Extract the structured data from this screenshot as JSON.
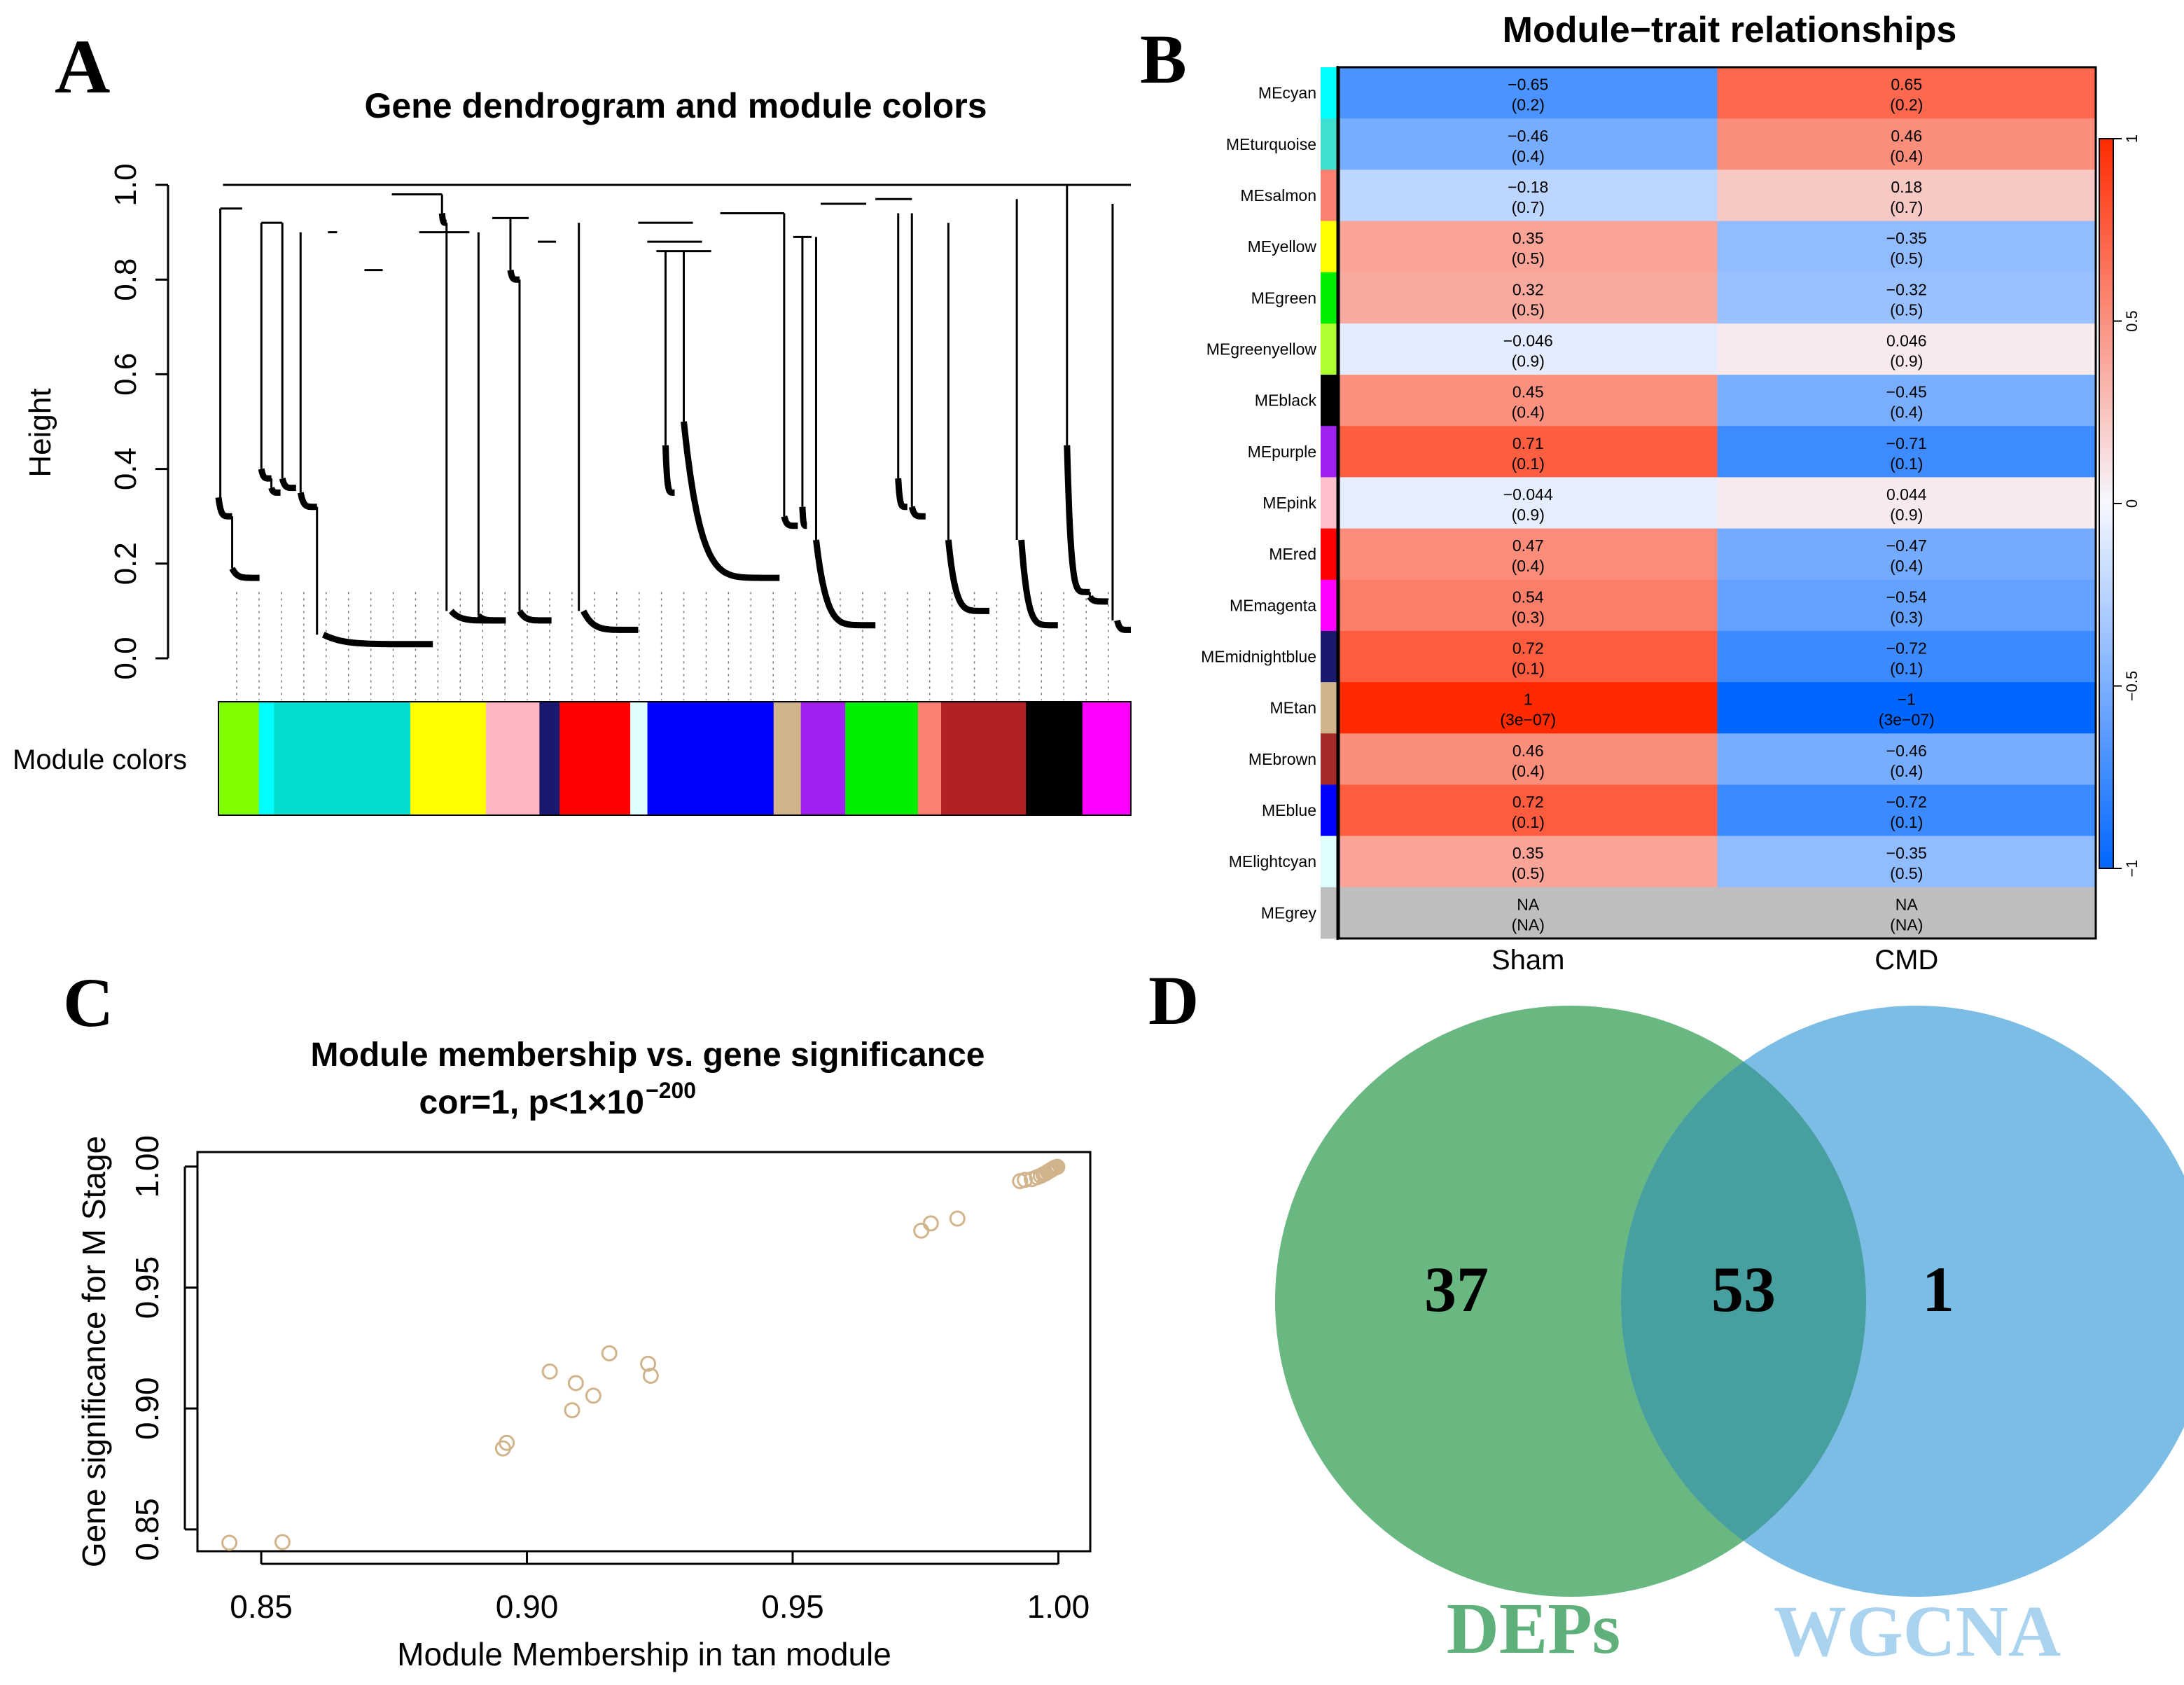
{
  "panels": {
    "a": "A",
    "b": "B",
    "c": "C",
    "d": "D"
  },
  "colors": {
    "dendro_line": "#000000",
    "heat_low": "#0066ff",
    "heat_mid": "#f6f8ff",
    "heat_high": "#ff2a00",
    "na_fill": "#bebebe",
    "scatter_point": "#d2b48c",
    "venn_left": "#3fa35e",
    "venn_right": "#7cbde6",
    "venn_overlap": "#479fa0",
    "venn_left_label": "#5fb07a",
    "venn_right_label": "#a9d3ee"
  },
  "chart_data": [
    {
      "id": "A",
      "type": "dendrogram",
      "title": "Gene dendrogram and module colors",
      "ylabel": "Height",
      "ylim": [
        0,
        1
      ],
      "yticks": [
        "0.0",
        "0.2",
        "0.4",
        "0.6",
        "0.8",
        "1.0"
      ],
      "row_label": "Module colors",
      "module_strip": [
        {
          "color": "greenyellow",
          "hex": "#7fff00",
          "weight": 4
        },
        {
          "color": "lightcyan",
          "hex": "#00ffff",
          "weight": 1.5
        },
        {
          "color": "turquoise",
          "hex": "#00ddcc",
          "weight": 13.5
        },
        {
          "color": "yellow",
          "hex": "#ffff00",
          "weight": 7.5
        },
        {
          "color": "pink",
          "hex": "#ffb6c1",
          "weight": 5.3
        },
        {
          "color": "midnightblue",
          "hex": "#191970",
          "weight": 2
        },
        {
          "color": "red",
          "hex": "#ff0000",
          "weight": 7
        },
        {
          "color": "lightcyan",
          "hex": "#e0ffff",
          "weight": 1.7
        },
        {
          "color": "blue",
          "hex": "#0000ff",
          "weight": 12.5
        },
        {
          "color": "tan",
          "hex": "#d2b48c",
          "weight": 2.7
        },
        {
          "color": "purple",
          "hex": "#a020f0",
          "weight": 4.4
        },
        {
          "color": "green",
          "hex": "#00ee00",
          "weight": 7.2
        },
        {
          "color": "salmon",
          "hex": "#fa8072",
          "weight": 2.3
        },
        {
          "color": "brown",
          "hex": "#b22222",
          "weight": 8.4
        },
        {
          "color": "black",
          "hex": "#000000",
          "weight": 5.6
        },
        {
          "color": "magenta",
          "hex": "#ff00ff",
          "weight": 4.8
        }
      ],
      "merges": [
        {
          "x1": 0.2,
          "x2": 2.6,
          "h": 0.95
        },
        {
          "x1": 4.7,
          "x2": 7.0,
          "h": 0.92
        },
        {
          "x1": 12.0,
          "x2": 13.0,
          "h": 0.9
        },
        {
          "x1": 16.0,
          "x2": 18.0,
          "h": 0.82
        },
        {
          "x1": 19.0,
          "x2": 24.5,
          "h": 0.98
        },
        {
          "x1": 22.0,
          "x2": 27.5,
          "h": 0.9
        },
        {
          "x1": 30.0,
          "x2": 34.0,
          "h": 0.93
        },
        {
          "x1": 35.0,
          "x2": 37.0,
          "h": 0.88
        },
        {
          "x1": 46.0,
          "x2": 52.0,
          "h": 0.92
        },
        {
          "x1": 47.0,
          "x2": 53.0,
          "h": 0.88
        },
        {
          "x1": 48.0,
          "x2": 54.0,
          "h": 0.86
        },
        {
          "x1": 55.0,
          "x2": 62.0,
          "h": 0.94
        },
        {
          "x1": 63.0,
          "x2": 65.0,
          "h": 0.89
        },
        {
          "x1": 66.0,
          "x2": 71.0,
          "h": 0.96
        },
        {
          "x1": 72.0,
          "x2": 76.0,
          "h": 0.97
        },
        {
          "x1": 0.5,
          "x2": 100.0,
          "h": 1.0
        }
      ],
      "drops": [
        {
          "x": 0.2,
          "top": 0.95,
          "hi": 0.34,
          "lo": 0.3,
          "x0": 0.0,
          "x1": 1.5
        },
        {
          "x": 1.5,
          "top": 0.3,
          "hi": 0.19,
          "lo": 0.17,
          "x0": 1.5,
          "x1": 4.5
        },
        {
          "x": 4.7,
          "top": 0.92,
          "hi": 0.4,
          "lo": 0.38,
          "x0": 4.7,
          "x1": 5.8
        },
        {
          "x": 5.8,
          "top": 0.38,
          "hi": 0.36,
          "lo": 0.35,
          "x0": 5.8,
          "x1": 6.8
        },
        {
          "x": 7.0,
          "top": 0.92,
          "hi": 0.38,
          "lo": 0.36,
          "x0": 7.0,
          "x1": 8.5
        },
        {
          "x": 9.0,
          "top": 0.9,
          "hi": 0.35,
          "lo": 0.32,
          "x0": 9.0,
          "x1": 10.8
        },
        {
          "x": 10.8,
          "top": 0.32,
          "hi": 0.05,
          "lo": 0.03,
          "x0": 11.5,
          "x1": 23.5
        },
        {
          "x": 24.5,
          "top": 0.98,
          "hi": 0.94,
          "lo": 0.92,
          "x0": 24.5,
          "x1": 25.0
        },
        {
          "x": 25.0,
          "top": 0.92,
          "hi": 0.1,
          "lo": 0.08,
          "x0": 25.5,
          "x1": 31.0
        },
        {
          "x": 28.5,
          "top": 0.9,
          "hi": 0.09,
          "lo": 0.08,
          "x0": 28.5,
          "x1": 31.5
        },
        {
          "x": 32.0,
          "top": 0.93,
          "hi": 0.82,
          "lo": 0.8,
          "x0": 32.0,
          "x1": 33.0
        },
        {
          "x": 33.0,
          "top": 0.8,
          "hi": 0.1,
          "lo": 0.08,
          "x0": 33.0,
          "x1": 36.5
        },
        {
          "x": 39.5,
          "top": 0.92,
          "hi": 0.1,
          "lo": 0.06,
          "x0": 40.0,
          "x1": 46.0
        },
        {
          "x": 49.0,
          "top": 0.86,
          "hi": 0.45,
          "lo": 0.35,
          "x0": 49.0,
          "x1": 50.0
        },
        {
          "x": 51.0,
          "top": 0.86,
          "hi": 0.5,
          "lo": 0.17,
          "x0": 51.0,
          "x1": 61.5
        },
        {
          "x": 62.0,
          "top": 0.94,
          "hi": 0.3,
          "lo": 0.28,
          "x0": 62.0,
          "x1": 63.5
        },
        {
          "x": 64.0,
          "top": 0.89,
          "hi": 0.32,
          "lo": 0.28,
          "x0": 64.0,
          "x1": 64.5
        },
        {
          "x": 65.5,
          "top": 0.89,
          "hi": 0.25,
          "lo": 0.07,
          "x0": 65.5,
          "x1": 72.0
        },
        {
          "x": 74.5,
          "top": 0.94,
          "hi": 0.38,
          "lo": 0.32,
          "x0": 74.5,
          "x1": 75.5
        },
        {
          "x": 76.0,
          "top": 0.94,
          "hi": 0.32,
          "lo": 0.3,
          "x0": 76.0,
          "x1": 77.5
        },
        {
          "x": 80.0,
          "top": 0.92,
          "hi": 0.25,
          "lo": 0.1,
          "x0": 80.0,
          "x1": 84.5
        },
        {
          "x": 87.5,
          "top": 0.97,
          "hi": 0.25,
          "lo": 0.07,
          "x0": 88.0,
          "x1": 92.0
        },
        {
          "x": 93.0,
          "top": 1.0,
          "hi": 0.45,
          "lo": 0.14,
          "x0": 93.0,
          "x1": 95.5
        },
        {
          "x": 95.5,
          "top": 0.14,
          "hi": 0.13,
          "lo": 0.12,
          "x0": 95.5,
          "x1": 97.5
        },
        {
          "x": 98.0,
          "top": 0.96,
          "hi": 0.08,
          "lo": 0.06,
          "x0": 98.5,
          "x1": 100.0
        }
      ]
    },
    {
      "id": "B",
      "type": "heatmap",
      "title": "Module−trait relationships",
      "columns": [
        "Sham",
        "CMD"
      ],
      "rows": [
        {
          "name": "MEcyan",
          "hex": "#00ffff",
          "vals": [
            -0.65,
            0.65
          ],
          "labels": [
            "−0.65",
            "0.65"
          ],
          "p": [
            "(0.2)",
            "(0.2)"
          ]
        },
        {
          "name": "MEturquoise",
          "hex": "#40e0d0",
          "vals": [
            -0.46,
            0.46
          ],
          "labels": [
            "−0.46",
            "0.46"
          ],
          "p": [
            "(0.4)",
            "(0.4)"
          ]
        },
        {
          "name": "MEsalmon",
          "hex": "#fa8072",
          "vals": [
            -0.18,
            0.18
          ],
          "labels": [
            "−0.18",
            "0.18"
          ],
          "p": [
            "(0.7)",
            "(0.7)"
          ]
        },
        {
          "name": "MEyellow",
          "hex": "#ffff00",
          "vals": [
            0.35,
            -0.35
          ],
          "labels": [
            "0.35",
            "−0.35"
          ],
          "p": [
            "(0.5)",
            "(0.5)"
          ]
        },
        {
          "name": "MEgreen",
          "hex": "#00ee00",
          "vals": [
            0.32,
            -0.32
          ],
          "labels": [
            "0.32",
            "−0.32"
          ],
          "p": [
            "(0.5)",
            "(0.5)"
          ]
        },
        {
          "name": "MEgreenyellow",
          "hex": "#adff2f",
          "vals": [
            -0.046,
            0.046
          ],
          "labels": [
            "−0.046",
            "0.046"
          ],
          "p": [
            "(0.9)",
            "(0.9)"
          ]
        },
        {
          "name": "MEblack",
          "hex": "#000000",
          "vals": [
            0.45,
            -0.45
          ],
          "labels": [
            "0.45",
            "−0.45"
          ],
          "p": [
            "(0.4)",
            "(0.4)"
          ]
        },
        {
          "name": "MEpurple",
          "hex": "#a020f0",
          "vals": [
            0.71,
            -0.71
          ],
          "labels": [
            "0.71",
            "−0.71"
          ],
          "p": [
            "(0.1)",
            "(0.1)"
          ]
        },
        {
          "name": "MEpink",
          "hex": "#ffc0cb",
          "vals": [
            -0.044,
            0.044
          ],
          "labels": [
            "−0.044",
            "0.044"
          ],
          "p": [
            "(0.9)",
            "(0.9)"
          ]
        },
        {
          "name": "MEred",
          "hex": "#ff0000",
          "vals": [
            0.47,
            -0.47
          ],
          "labels": [
            "0.47",
            "−0.47"
          ],
          "p": [
            "(0.4)",
            "(0.4)"
          ]
        },
        {
          "name": "MEmagenta",
          "hex": "#ff00ff",
          "vals": [
            0.54,
            -0.54
          ],
          "labels": [
            "0.54",
            "−0.54"
          ],
          "p": [
            "(0.3)",
            "(0.3)"
          ]
        },
        {
          "name": "MEmidnightblue",
          "hex": "#191970",
          "vals": [
            0.72,
            -0.72
          ],
          "labels": [
            "0.72",
            "−0.72"
          ],
          "p": [
            "(0.1)",
            "(0.1)"
          ]
        },
        {
          "name": "MEtan",
          "hex": "#d2b48c",
          "vals": [
            1,
            -1
          ],
          "labels": [
            "1",
            "−1"
          ],
          "p": [
            "(3e−07)",
            "(3e−07)"
          ]
        },
        {
          "name": "MEbrown",
          "hex": "#a52a2a",
          "vals": [
            0.46,
            -0.46
          ],
          "labels": [
            "0.46",
            "−0.46"
          ],
          "p": [
            "(0.4)",
            "(0.4)"
          ]
        },
        {
          "name": "MEblue",
          "hex": "#0000ff",
          "vals": [
            0.72,
            -0.72
          ],
          "labels": [
            "0.72",
            "−0.72"
          ],
          "p": [
            "(0.1)",
            "(0.1)"
          ]
        },
        {
          "name": "MElightcyan",
          "hex": "#e0ffff",
          "vals": [
            0.35,
            -0.35
          ],
          "labels": [
            "0.35",
            "−0.35"
          ],
          "p": [
            "(0.5)",
            "(0.5)"
          ]
        },
        {
          "name": "MEgrey",
          "hex": "#bebebe",
          "vals": [
            null,
            null
          ],
          "labels": [
            "NA",
            "NA"
          ],
          "p": [
            "(NA)",
            "(NA)"
          ]
        }
      ],
      "legend_range": [
        -1,
        1
      ],
      "legend_ticks": [
        {
          "v": 1,
          "label": "1"
        },
        {
          "v": 0.5,
          "label": "0.5"
        },
        {
          "v": 0,
          "label": "0"
        },
        {
          "v": -0.5,
          "label": "−0.5"
        },
        {
          "v": -1,
          "label": "−1"
        }
      ]
    },
    {
      "id": "C",
      "type": "scatter",
      "title": "Module membership vs. gene significance",
      "subtitle_main": "cor=1, p<1×10",
      "subtitle_exp": "−200",
      "xlabel": "Module Membership in tan module",
      "ylabel": "Gene significance for M Stage",
      "xlim": [
        0.838,
        1.006
      ],
      "ylim": [
        0.841,
        1.006
      ],
      "xticks": [
        {
          "v": 0.85,
          "label": "0.85"
        },
        {
          "v": 0.9,
          "label": "0.90"
        },
        {
          "v": 0.95,
          "label": "0.95"
        },
        {
          "v": 1.0,
          "label": "1.00"
        }
      ],
      "yticks": [
        {
          "v": 0.85,
          "label": "0.85"
        },
        {
          "v": 0.9,
          "label": "0.90"
        },
        {
          "v": 0.95,
          "label": "0.95"
        },
        {
          "v": 1.0,
          "label": "1.00"
        }
      ],
      "x": [
        0.844,
        0.854,
        0.8955,
        0.8962,
        0.9043,
        0.9085,
        0.9092,
        0.9125,
        0.9155,
        0.9228,
        0.9233,
        0.9742,
        0.976,
        0.981,
        0.9928,
        0.9937,
        0.995,
        0.996,
        0.9967,
        0.9972,
        0.9976,
        0.998,
        0.9983,
        0.9986,
        0.9989,
        0.9992,
        0.9995,
        0.9998
      ],
      "y": [
        0.8445,
        0.8448,
        0.8835,
        0.8858,
        0.9153,
        0.8993,
        0.9105,
        0.9053,
        0.9228,
        0.9185,
        0.9135,
        0.9735,
        0.9765,
        0.9785,
        0.994,
        0.9945,
        0.9948,
        0.9956,
        0.9962,
        0.9968,
        0.9972,
        0.9978,
        0.9982,
        0.9986,
        0.999,
        0.9994,
        0.9997,
        0.9999
      ]
    },
    {
      "id": "D",
      "type": "venn",
      "sets": [
        {
          "name": "DEPs",
          "only": 37
        },
        {
          "name": "WGCNA",
          "only": 1
        }
      ],
      "overlap": 53,
      "labels": {
        "left_count": "37",
        "overlap": "53",
        "right_count": "1",
        "left_name": "DEPs",
        "right_name": "WGCNA"
      }
    }
  ]
}
